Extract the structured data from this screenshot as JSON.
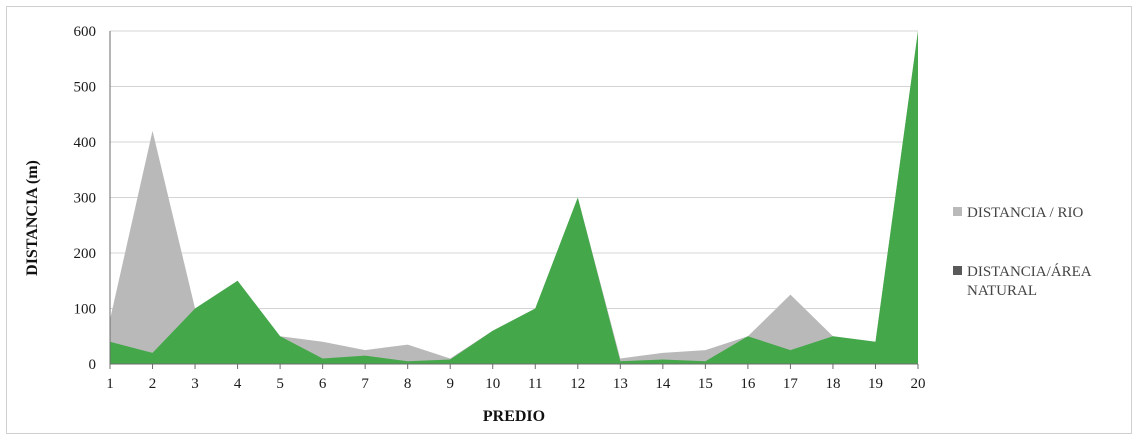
{
  "chart_data": {
    "type": "area",
    "x": [
      1,
      2,
      3,
      4,
      5,
      6,
      7,
      8,
      9,
      10,
      11,
      12,
      13,
      14,
      15,
      16,
      17,
      18,
      19,
      20
    ],
    "xlabel": "PREDIO",
    "ylabel": "DISTANCIA  (m)",
    "ylim": [
      0,
      600
    ],
    "yticks": [
      0,
      100,
      200,
      300,
      400,
      500,
      600
    ],
    "grid": true,
    "legend_position": "right",
    "series": [
      {
        "name": "DISTANCIA / RIO",
        "color": "#b9b9b9",
        "values": [
          80,
          420,
          100,
          150,
          50,
          40,
          25,
          35,
          10,
          60,
          100,
          300,
          10,
          20,
          25,
          50,
          125,
          50,
          40,
          600
        ]
      },
      {
        "name": "DISTANCIA/ÁREA NATURAL",
        "color": "#44a84a",
        "legend_color": "#595959",
        "values": [
          40,
          20,
          100,
          150,
          50,
          10,
          15,
          5,
          8,
          60,
          100,
          300,
          5,
          8,
          5,
          50,
          25,
          50,
          40,
          600
        ]
      }
    ]
  }
}
